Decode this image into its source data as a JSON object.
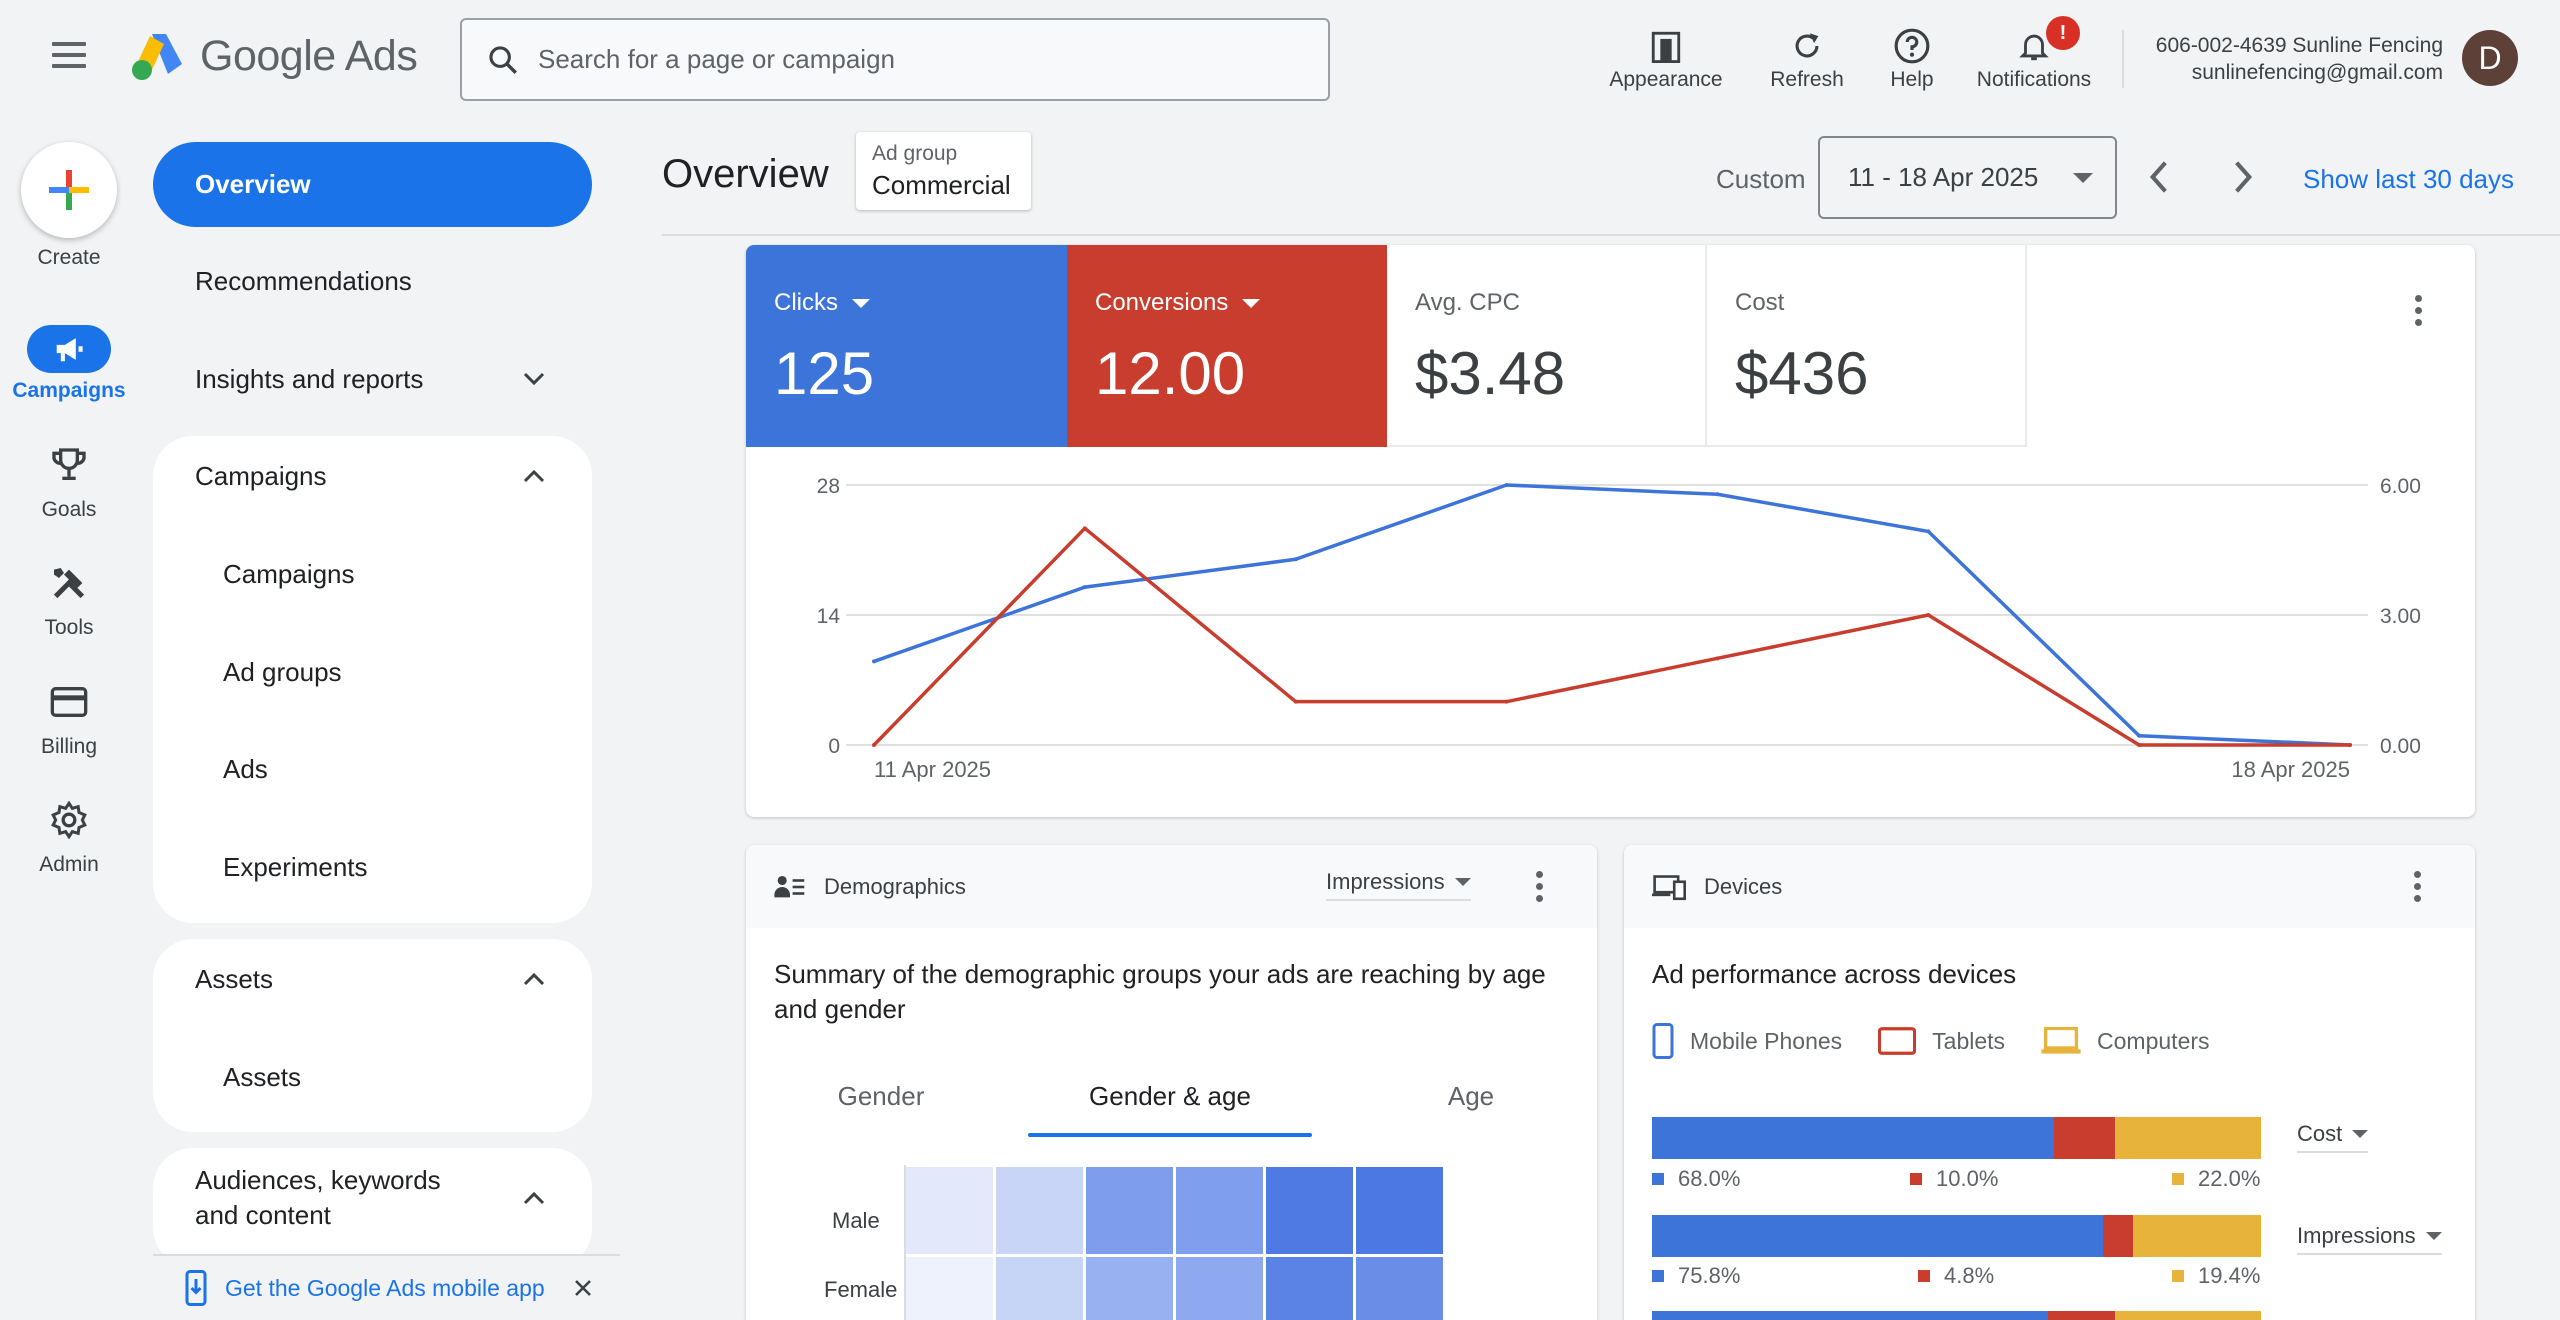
{
  "app": {
    "name": "Google Ads"
  },
  "search": {
    "placeholder": "Search for a page or campaign"
  },
  "toolbar": {
    "appearance": "Appearance",
    "refresh": "Refresh",
    "help": "Help",
    "notifications": "Notifications",
    "notifications_badge": "!"
  },
  "account": {
    "line1": "606-002-4639 Sunline Fencing",
    "email": "sunlinefencing@gmail.com",
    "avatar_letter": "D"
  },
  "rail": {
    "create": "Create",
    "campaigns": "Campaigns",
    "goals": "Goals",
    "tools": "Tools",
    "billing": "Billing",
    "admin": "Admin"
  },
  "nav": {
    "overview": "Overview",
    "recommendations": "Recommendations",
    "insights": "Insights and reports",
    "campaigns_header": "Campaigns",
    "campaigns": "Campaigns",
    "ad_groups": "Ad groups",
    "ads": "Ads",
    "experiments": "Experiments",
    "assets_header": "Assets",
    "assets": "Assets",
    "audiences_header": "Audiences, keywords and content",
    "mobile_app": "Get the Google Ads mobile app"
  },
  "header": {
    "title": "Overview",
    "adgroup_label": "Ad group",
    "adgroup_value": "Commercial",
    "custom": "Custom",
    "date_range": "11 - 18 Apr 2025",
    "show_last": "Show last 30 days"
  },
  "metrics": {
    "clicks_label": "Clicks",
    "clicks_value": "125",
    "conversions_label": "Conversions",
    "conversions_value": "12.00",
    "cpc_label": "Avg. CPC",
    "cpc_value": "$3.48",
    "cost_label": "Cost",
    "cost_value": "$436"
  },
  "colors": {
    "blue": "#3d74d9",
    "red": "#c83d2d",
    "yellow": "#e8b33a",
    "accent": "#1a73e8"
  },
  "chart_data": {
    "type": "line",
    "x": [
      "11 Apr 2025",
      "12 Apr 2025",
      "13 Apr 2025",
      "14 Apr 2025",
      "15 Apr 2025",
      "16 Apr 2025",
      "17 Apr 2025",
      "18 Apr 2025"
    ],
    "x_tick_labels": [
      "11 Apr 2025",
      "18 Apr 2025"
    ],
    "left_ticks": [
      "0",
      "14",
      "28"
    ],
    "right_ticks": [
      "0.00",
      "3.00",
      "6.00"
    ],
    "ylim_left": [
      0,
      28
    ],
    "ylim_right": [
      0,
      6
    ],
    "series": [
      {
        "values": [
          9,
          17,
          20,
          28,
          27,
          23,
          1,
          0
        ],
        "axis": "left",
        "color": "#3d74d9"
      },
      {
        "values": [
          0,
          5,
          1,
          1,
          2,
          3,
          0,
          0
        ],
        "axis": "right",
        "color": "#c83d2d"
      }
    ],
    "grid": true
  },
  "demographics": {
    "title": "Demographics",
    "metric": "Impressions",
    "summary": "Summary of the demographic groups your ads are reaching by age and gender",
    "tabs": [
      "Gender",
      "Gender & age",
      "Age"
    ],
    "rows": [
      "Male",
      "Female"
    ]
  },
  "devices": {
    "title": "Devices",
    "summary": "Ad performance across devices",
    "legend": [
      "Mobile Phones",
      "Tablets",
      "Computers"
    ],
    "metric1": "Cost",
    "metric2": "Impressions",
    "row1": {
      "mobile": "68.0%",
      "tablets": "10.0%",
      "computers": "22.0%"
    },
    "row2": {
      "mobile": "75.8%",
      "tablets": "4.8%",
      "computers": "19.4%"
    }
  }
}
